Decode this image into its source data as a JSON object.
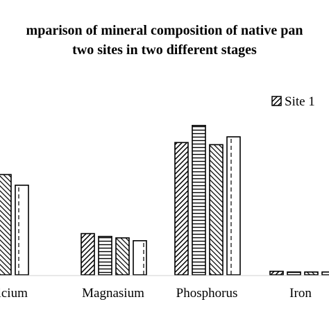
{
  "chart_data": {
    "type": "bar",
    "title_lines": [
      "mparison of mineral composition of native pan",
      "two sites in two different stages"
    ],
    "categories": [
      "alcium",
      "Magnasium",
      "Phosphorus",
      "Iron"
    ],
    "series": [
      {
        "name": "Site 1",
        "pattern": "diag-right",
        "values": [
          null,
          58,
          186,
          5
        ]
      },
      {
        "name": "",
        "pattern": "horizontal",
        "values": [
          113,
          54,
          210,
          4
        ]
      },
      {
        "name": "",
        "pattern": "diag-left",
        "values": [
          141,
          52,
          183,
          4
        ]
      },
      {
        "name": "",
        "pattern": "dashed-vertical",
        "values": [
          126,
          48,
          194,
          4
        ]
      }
    ],
    "ylim": [
      0,
      240
    ],
    "xlabel": "",
    "ylabel": "",
    "grid": false,
    "legend_position": "top-right"
  }
}
